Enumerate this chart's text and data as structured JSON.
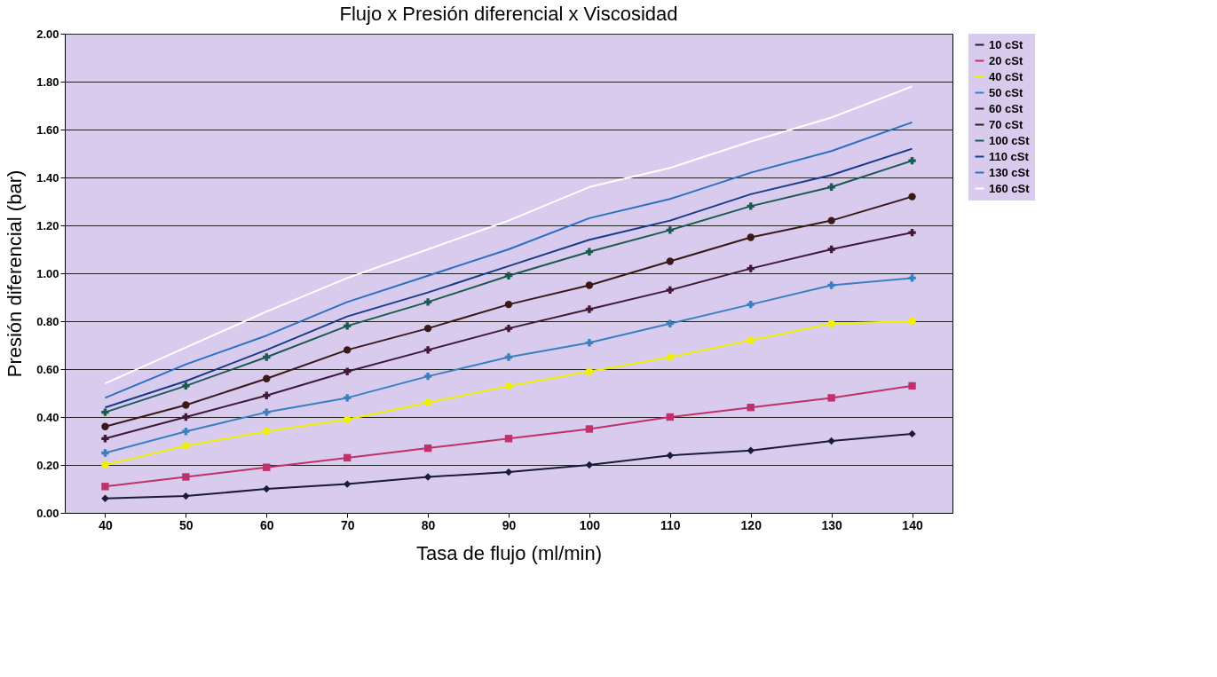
{
  "chart_data": {
    "type": "line",
    "title": "Flujo x Presión diferencial x Viscosidad",
    "xlabel": "Tasa de flujo (ml/min)",
    "ylabel": "Presión diferencial (bar)",
    "categories": [
      "40",
      "50",
      "60",
      "70",
      "80",
      "90",
      "100",
      "110",
      "120",
      "130",
      "140"
    ],
    "series": [
      {
        "name": "10 cSt",
        "color": "#1a1a3a",
        "marker": "diamond",
        "values": [
          0.06,
          0.07,
          0.1,
          0.12,
          0.15,
          0.17,
          0.2,
          0.24,
          0.26,
          0.3,
          0.33
        ]
      },
      {
        "name": "20 cSt",
        "color": "#c0306a",
        "marker": "square",
        "values": [
          0.11,
          0.15,
          0.19,
          0.23,
          0.27,
          0.31,
          0.35,
          0.4,
          0.44,
          0.48,
          0.53
        ]
      },
      {
        "name": "40 cSt",
        "color": "#f0f000",
        "marker": "circle",
        "values": [
          0.2,
          0.28,
          0.34,
          0.39,
          0.46,
          0.53,
          0.59,
          0.65,
          0.72,
          0.79,
          0.8
        ]
      },
      {
        "name": "50 cSt",
        "color": "#3a80c0",
        "marker": "cross",
        "values": [
          0.25,
          0.34,
          0.42,
          0.48,
          0.57,
          0.65,
          0.71,
          0.79,
          0.87,
          0.95,
          0.98
        ]
      },
      {
        "name": "60 cSt",
        "color": "#401838",
        "marker": "cross",
        "values": [
          0.31,
          0.4,
          0.49,
          0.59,
          0.68,
          0.77,
          0.85,
          0.93,
          1.02,
          1.1,
          1.17
        ]
      },
      {
        "name": "70 cSt",
        "color": "#3a1818",
        "marker": "circle",
        "values": [
          0.36,
          0.45,
          0.56,
          0.68,
          0.77,
          0.87,
          0.95,
          1.05,
          1.15,
          1.22,
          1.32
        ]
      },
      {
        "name": "100 cSt",
        "color": "#1a5a50",
        "marker": "cross",
        "values": [
          0.42,
          0.53,
          0.65,
          0.78,
          0.88,
          0.99,
          1.09,
          1.18,
          1.28,
          1.36,
          1.47
        ]
      },
      {
        "name": "110 cSt",
        "color": "#1a3a8a",
        "marker": "none",
        "values": [
          0.44,
          0.55,
          0.68,
          0.82,
          0.92,
          1.03,
          1.14,
          1.22,
          1.33,
          1.41,
          1.52
        ]
      },
      {
        "name": "130 cSt",
        "color": "#2a70c0",
        "marker": "none",
        "values": [
          0.48,
          0.62,
          0.74,
          0.88,
          0.99,
          1.1,
          1.23,
          1.31,
          1.42,
          1.51,
          1.63
        ]
      },
      {
        "name": "160 cSt",
        "color": "#ffffff",
        "marker": "none",
        "values": [
          0.54,
          0.69,
          0.84,
          0.98,
          1.1,
          1.22,
          1.36,
          1.44,
          1.55,
          1.65,
          1.78
        ]
      }
    ],
    "ylim": [
      0,
      2
    ],
    "yticks": [
      {
        "value": 0,
        "label": "0.00"
      },
      {
        "value": 0.2,
        "label": "0.20"
      },
      {
        "value": 0.4,
        "label": "0.40"
      },
      {
        "value": 0.6,
        "label": "0.60"
      },
      {
        "value": 0.8,
        "label": "0.80"
      },
      {
        "value": 1,
        "label": "1.00"
      },
      {
        "value": 1.2,
        "label": "1.20"
      },
      {
        "value": 1.4,
        "label": "1.40"
      },
      {
        "value": 1.6,
        "label": "1.60"
      },
      {
        "value": 1.8,
        "label": "1.80"
      },
      {
        "value": 2,
        "label": "2.00"
      }
    ],
    "grid": "y",
    "legend": "right",
    "line_style": "solid"
  }
}
